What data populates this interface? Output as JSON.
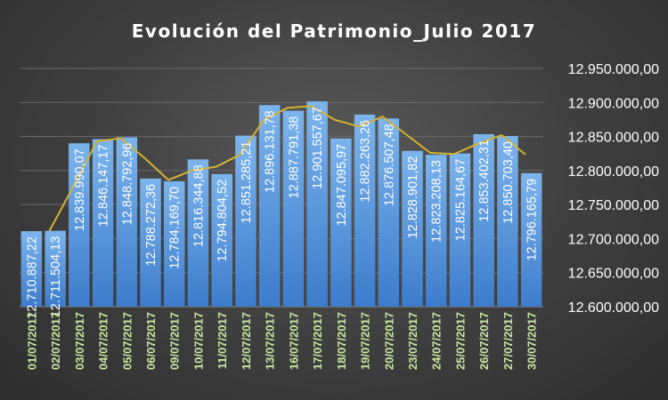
{
  "chart_data": {
    "type": "bar",
    "title": "Evolución del Patrimonio_Julio 2017",
    "categories": [
      "01/07/2017",
      "02/07/2017",
      "03/07/2017",
      "04/07/2017",
      "05/07/2017",
      "06/07/2017",
      "09/07/2017",
      "10/07/2017",
      "11/07/2017",
      "12/07/2017",
      "13/07/2017",
      "16/07/2017",
      "17/07/2017",
      "18/07/2017",
      "19/07/2017",
      "20/07/2017",
      "23/07/2017",
      "24/07/2017",
      "25/07/2017",
      "26/07/2017",
      "27/07/2017",
      "30/07/2017"
    ],
    "values": [
      12710887.22,
      12711504.13,
      12839990.07,
      12846147.17,
      12848792.96,
      12788272.36,
      12784169.7,
      12816344.88,
      12794804.52,
      12851285.21,
      12896131.78,
      12887791.38,
      12901557.67,
      12847095.97,
      12882263.26,
      12876507.48,
      12828901.82,
      12823208.13,
      12825164.67,
      12853402.31,
      12850703.4,
      12796165.79
    ],
    "value_labels": [
      "12.710.887,22",
      "12.711.504,13",
      "12.839.990,07",
      "12.846.147,17",
      "12.848.792,96",
      "12.788.272,36",
      "12.784.169,70",
      "12.816.344,88",
      "12.794.804,52",
      "12.851.285,21",
      "12.896.131,78",
      "12.887.791,38",
      "12.901.557,67",
      "12.847.095,97",
      "12.882.263,26",
      "12.876.507,48",
      "12.828.901,82",
      "12.823.208,13",
      "12.825.164,67",
      "12.853.402,31",
      "12.850.703,40",
      "12.796.165,79"
    ],
    "trend_line": "moving-average-2",
    "ylim": [
      12600000,
      12950000
    ],
    "yticks": [
      "12.600.000,00",
      "12.650.000,00",
      "12.700.000,00",
      "12.750.000,00",
      "12.800.000,00",
      "12.850.000,00",
      "12.900.000,00",
      "12.950.000,00"
    ],
    "ytick_values": [
      12600000,
      12650000,
      12700000,
      12750000,
      12800000,
      12850000,
      12900000,
      12950000
    ],
    "xlabel": "",
    "ylabel": "",
    "y_axis_side": "right",
    "grid": true,
    "legend": false,
    "colors": {
      "bar_top": "#7cb4ec",
      "bar_bottom": "#3d7ccc",
      "trend": "#d4b232",
      "xtick_text": "#c8e6a0",
      "text": "#ffffff"
    }
  }
}
